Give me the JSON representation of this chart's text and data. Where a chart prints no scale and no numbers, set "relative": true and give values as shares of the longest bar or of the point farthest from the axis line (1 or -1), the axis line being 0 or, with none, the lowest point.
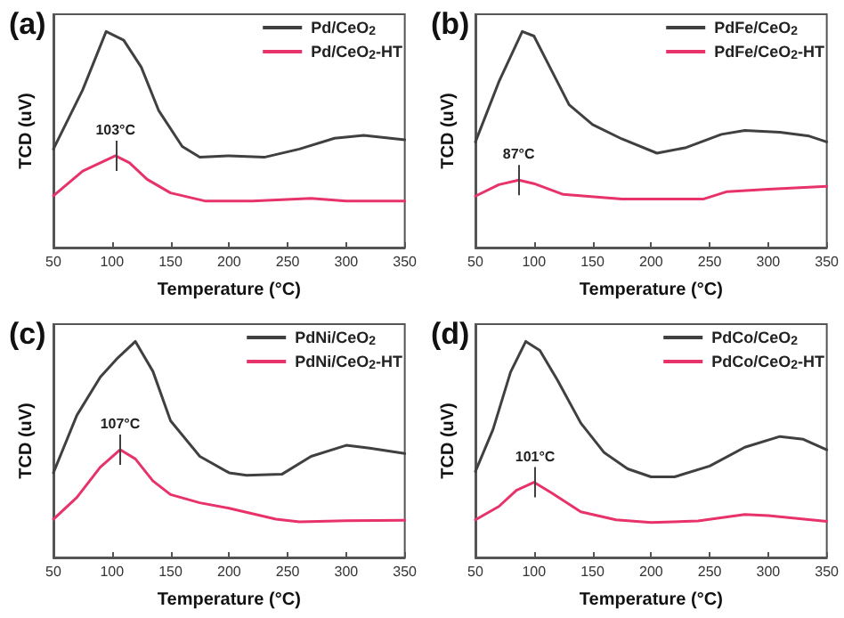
{
  "chart_data": [
    {
      "type": "line",
      "title": "(a)",
      "xlabel": "Temperature (°C)",
      "ylabel": "TCD (uV)",
      "relative": true,
      "xlim": [
        50,
        350
      ],
      "xticks": [
        50,
        100,
        150,
        200,
        250,
        300,
        350
      ],
      "legend": "top right",
      "grid": false,
      "marker": "none",
      "line_style": "solid",
      "annotations": [
        {
          "text": "103°C",
          "x": 103,
          "y": 0.425
        }
      ],
      "series": [
        {
          "name": "Pd/CeO$_{2}$",
          "color": "#404040",
          "x": [
            50,
            75,
            95,
            110,
            125,
            140,
            160,
            175,
            200,
            230,
            260,
            290,
            315,
            350
          ],
          "values": [
            0.456,
            0.73,
            1,
            0.96,
            0.835,
            0.633,
            0.468,
            0.418,
            0.425,
            0.418,
            0.456,
            0.506,
            0.519,
            0.499
          ]
        },
        {
          "name": "Pd/CeO$_{2}$-HT",
          "color": "#e8326a",
          "x": [
            50,
            75,
            90,
            103,
            115,
            130,
            150,
            180,
            220,
            270,
            300,
            350
          ],
          "values": [
            0.24,
            0.354,
            0.392,
            0.425,
            0.392,
            0.316,
            0.253,
            0.215,
            0.215,
            0.228,
            0.215,
            0.215
          ]
        }
      ]
    },
    {
      "type": "line",
      "title": "(b)",
      "xlabel": "Temperature (°C)",
      "ylabel": "TCD (uV)",
      "relative": true,
      "xlim": [
        50,
        350
      ],
      "xticks": [
        50,
        100,
        150,
        200,
        250,
        300,
        350
      ],
      "legend": "top right",
      "grid": false,
      "marker": "none",
      "line_style": "solid",
      "annotations": [
        {
          "text": "87°C",
          "x": 87,
          "y": 0.312
        }
      ],
      "series": [
        {
          "name": "PdFe/CeO$_{2}$",
          "color": "#404040",
          "x": [
            50,
            70,
            90,
            100,
            115,
            130,
            150,
            175,
            205,
            230,
            260,
            280,
            310,
            335,
            350
          ],
          "values": [
            0.489,
            0.767,
            1,
            0.979,
            0.82,
            0.661,
            0.569,
            0.503,
            0.437,
            0.463,
            0.524,
            0.542,
            0.534,
            0.516,
            0.489
          ]
        },
        {
          "name": "PdFe/CeO$_{2}$-HT",
          "color": "#e8326a",
          "x": [
            50,
            70,
            87,
            100,
            125,
            175,
            245,
            265,
            300,
            350
          ],
          "values": [
            0.238,
            0.291,
            0.312,
            0.296,
            0.246,
            0.225,
            0.225,
            0.259,
            0.27,
            0.283
          ]
        }
      ]
    },
    {
      "type": "line",
      "title": "(c)",
      "xlabel": "Temperature (°C)",
      "ylabel": "TCD (uV)",
      "relative": true,
      "xlim": [
        50,
        350
      ],
      "xticks": [
        50,
        100,
        150,
        200,
        250,
        300,
        350
      ],
      "legend": "top right",
      "grid": false,
      "marker": "none",
      "line_style": "solid",
      "annotations": [
        {
          "text": "107°C",
          "x": 107,
          "y": 0.499
        }
      ],
      "series": [
        {
          "name": "PdNi/CeO$_{2}$",
          "color": "#404040",
          "x": [
            50,
            70,
            90,
            105,
            120,
            135,
            150,
            175,
            200,
            215,
            245,
            270,
            300,
            320,
            350
          ],
          "values": [
            0.392,
            0.658,
            0.835,
            0.924,
            1,
            0.861,
            0.633,
            0.468,
            0.392,
            0.38,
            0.385,
            0.468,
            0.519,
            0.506,
            0.481
          ]
        },
        {
          "name": "PdNi/CeO$_{2}$-HT",
          "color": "#e8326a",
          "x": [
            50,
            70,
            90,
            107,
            120,
            135,
            150,
            175,
            200,
            240,
            260,
            300,
            350
          ],
          "values": [
            0.177,
            0.278,
            0.418,
            0.499,
            0.456,
            0.354,
            0.291,
            0.253,
            0.228,
            0.177,
            0.165,
            0.17,
            0.172
          ]
        }
      ]
    },
    {
      "type": "line",
      "title": "(d)",
      "xlabel": "Temperature (°C)",
      "ylabel": "TCD (uV)",
      "relative": true,
      "xlim": [
        50,
        350
      ],
      "xticks": [
        50,
        100,
        150,
        200,
        250,
        300,
        350
      ],
      "legend": "top right",
      "grid": false,
      "marker": "none",
      "line_style": "solid",
      "annotations": [
        {
          "text": "101°C",
          "x": 101,
          "y": 0.348
        }
      ],
      "series": [
        {
          "name": "PdCo/CeO$_{2}$",
          "color": "#404040",
          "x": [
            50,
            65,
            80,
            93,
            105,
            120,
            140,
            160,
            180,
            200,
            220,
            250,
            280,
            310,
            330,
            350
          ],
          "values": [
            0.398,
            0.592,
            0.858,
            1,
            0.958,
            0.821,
            0.622,
            0.485,
            0.41,
            0.373,
            0.373,
            0.423,
            0.51,
            0.56,
            0.547,
            0.498
          ]
        },
        {
          "name": "PdCo/CeO$_{2}$-HT",
          "color": "#e8326a",
          "x": [
            50,
            70,
            85,
            100,
            115,
            140,
            170,
            200,
            240,
            280,
            300,
            350
          ],
          "values": [
            0.174,
            0.236,
            0.311,
            0.348,
            0.299,
            0.211,
            0.174,
            0.162,
            0.169,
            0.199,
            0.194,
            0.167
          ]
        }
      ]
    }
  ]
}
